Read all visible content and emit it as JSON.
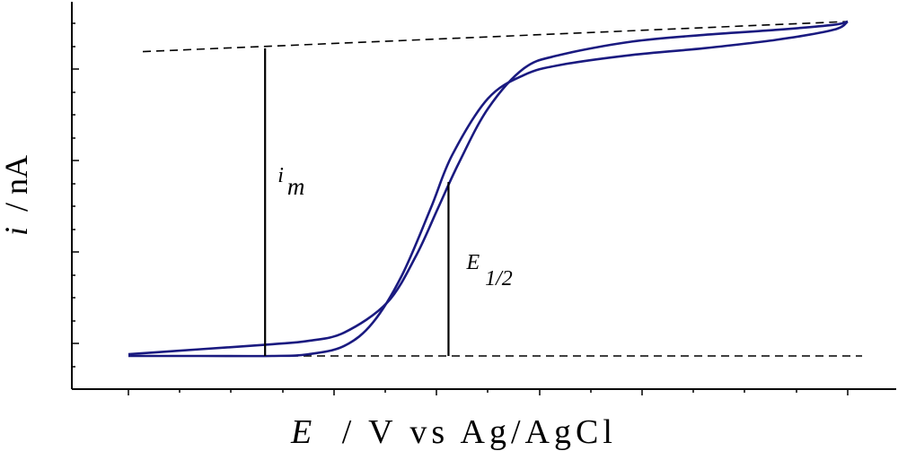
{
  "chart_data": {
    "type": "line",
    "title": "",
    "xlabel": {
      "italic": "E",
      "rest": "/ V vs Ag/AgCl"
    },
    "ylabel": {
      "italic": "i",
      "rest": "/ nA"
    },
    "xlim": [
      0,
      1
    ],
    "ylim": [
      0,
      1
    ],
    "grid": false,
    "legend": "none",
    "series": [
      {
        "color": "#1a1a80",
        "branch_forward": {
          "x": [
            0.0,
            0.1,
            0.2,
            0.25,
            0.3,
            0.34,
            0.38,
            0.42,
            0.45,
            0.5,
            0.55,
            0.6,
            0.7,
            0.8,
            0.9,
            0.98,
            1.0
          ],
          "y": [
            0.0,
            0.0,
            0.0,
            0.005,
            0.03,
            0.1,
            0.24,
            0.44,
            0.6,
            0.77,
            0.84,
            0.87,
            0.9,
            0.92,
            0.945,
            0.975,
            1.0
          ]
        },
        "branch_reverse": {
          "x": [
            1.0,
            0.98,
            0.9,
            0.8,
            0.7,
            0.6,
            0.55,
            0.5,
            0.46,
            0.43,
            0.4,
            0.36,
            0.3,
            0.25,
            0.2,
            0.1,
            0.0
          ],
          "y": [
            1.0,
            0.99,
            0.975,
            0.96,
            0.94,
            0.9,
            0.86,
            0.74,
            0.58,
            0.44,
            0.3,
            0.16,
            0.07,
            0.045,
            0.035,
            0.02,
            0.005
          ]
        }
      }
    ],
    "annotations": [
      {
        "kind": "baseline",
        "style": "dashed",
        "x1": 0.0,
        "y1": 0.0,
        "x2": 1.02,
        "y2": 0.0
      },
      {
        "kind": "plateau",
        "style": "dashed",
        "x1": 0.02,
        "y1": 0.91,
        "x2": 1.0,
        "y2": 1.0
      },
      {
        "kind": "im",
        "text": "i",
        "sub": "m",
        "x": 0.19,
        "y_from": 0.0,
        "y_to": 0.92
      },
      {
        "kind": "e-half",
        "text": "E",
        "sub": "1/2",
        "x": 0.445,
        "y_from": 0.0,
        "y_to": 0.52
      }
    ]
  }
}
